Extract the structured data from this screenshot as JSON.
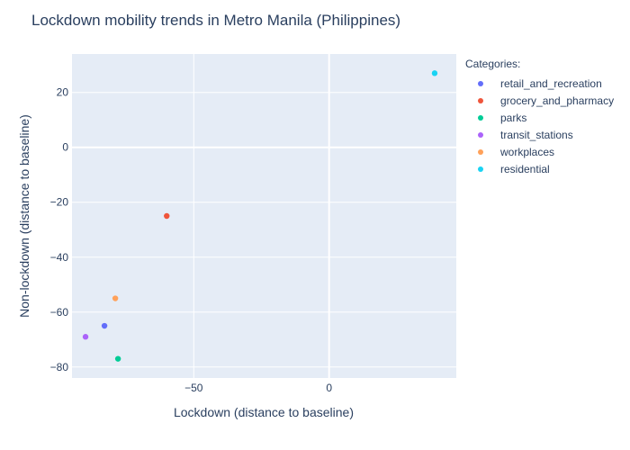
{
  "chart_data": {
    "type": "scatter",
    "title": "Lockdown mobility trends in Metro Manila (Philippines)",
    "xlabel": "Lockdown (distance to baseline)",
    "ylabel": "Non-lockdown (distance to baseline)",
    "xlim": [
      -95,
      47
    ],
    "ylim": [
      -84,
      34
    ],
    "x_ticks": [
      -50,
      0
    ],
    "y_ticks": [
      -80,
      -60,
      -40,
      -20,
      0,
      20
    ],
    "grid": true,
    "legend_title": "Categories:",
    "legend_position": "right",
    "series": [
      {
        "name": "retail_and_recreation",
        "color": "#636efa",
        "x": [
          -83
        ],
        "y": [
          -65
        ]
      },
      {
        "name": "grocery_and_pharmacy",
        "color": "#EF553B",
        "x": [
          -60
        ],
        "y": [
          -25
        ]
      },
      {
        "name": "parks",
        "color": "#00cc96",
        "x": [
          -78
        ],
        "y": [
          -77
        ]
      },
      {
        "name": "transit_stations",
        "color": "#ab63fa",
        "x": [
          -90
        ],
        "y": [
          -69
        ]
      },
      {
        "name": "workplaces",
        "color": "#FFA15A",
        "x": [
          -79
        ],
        "y": [
          -55
        ]
      },
      {
        "name": "residential",
        "color": "#19d3f3",
        "x": [
          39
        ],
        "y": [
          27
        ]
      }
    ],
    "plot_bgcolor": "#e5ecf6",
    "grid_color": "#ffffff"
  }
}
